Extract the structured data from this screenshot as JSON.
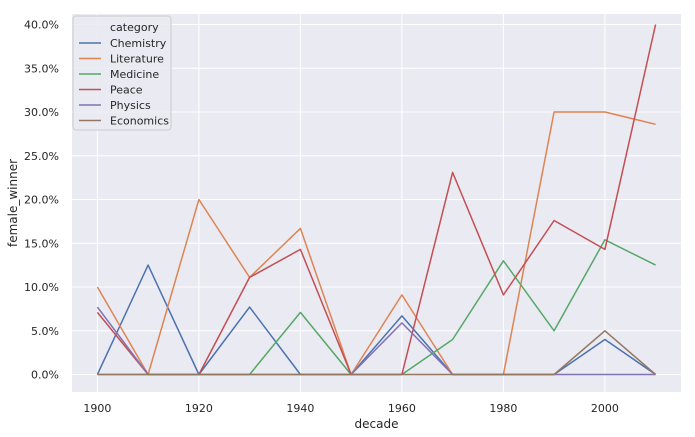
{
  "chart_data": {
    "type": "line",
    "title": "",
    "xlabel": "decade",
    "ylabel": "female_winner",
    "xlim": [
      1895,
      2015
    ],
    "ylim": [
      -0.02,
      0.412
    ],
    "xticks": [
      1900,
      1920,
      1940,
      1960,
      1980,
      2000
    ],
    "xtick_labels": [
      "1900",
      "1920",
      "1940",
      "1960",
      "1980",
      "2000"
    ],
    "yticks": [
      0,
      0.05,
      0.1,
      0.15,
      0.2,
      0.25,
      0.3,
      0.35,
      0.4
    ],
    "ytick_labels": [
      "0.0%",
      "5.0%",
      "10.0%",
      "15.0%",
      "20.0%",
      "25.0%",
      "30.0%",
      "35.0%",
      "40.0%"
    ],
    "x": [
      1900,
      1910,
      1920,
      1930,
      1940,
      1950,
      1960,
      1970,
      1980,
      1990,
      2000,
      2010
    ],
    "legend_title": "category",
    "legend_position": "top-left",
    "grid": true,
    "background": "#eaeaf2",
    "series": [
      {
        "name": "Chemistry",
        "color": "#4c72b0",
        "values": [
          0,
          0.125,
          0,
          0.077,
          0,
          0,
          0.067,
          0,
          0,
          0,
          0.04,
          0
        ]
      },
      {
        "name": "Literature",
        "color": "#dd8452",
        "values": [
          0.1,
          0,
          0.2,
          0.111,
          0.167,
          0,
          0.091,
          0,
          0,
          0.3,
          0.3,
          0.286
        ]
      },
      {
        "name": "Medicine",
        "color": "#55a868",
        "values": [
          0,
          0,
          0,
          0,
          0.071,
          0,
          0,
          0.04,
          0.13,
          0.05,
          0.154,
          0.125
        ]
      },
      {
        "name": "Peace",
        "color": "#c44e52",
        "values": [
          0.071,
          0,
          0,
          0.111,
          0.143,
          0,
          0,
          0.231,
          0.091,
          0.176,
          0.143,
          0.4
        ]
      },
      {
        "name": "Physics",
        "color": "#8172b3",
        "values": [
          0.077,
          0,
          0,
          0,
          0,
          0,
          0.059,
          0,
          0,
          0,
          0,
          0
        ]
      },
      {
        "name": "Economics",
        "color": "#937860",
        "values": [
          0,
          0,
          0,
          0,
          0,
          0,
          0,
          0,
          0,
          0,
          0.05,
          0
        ]
      }
    ]
  }
}
